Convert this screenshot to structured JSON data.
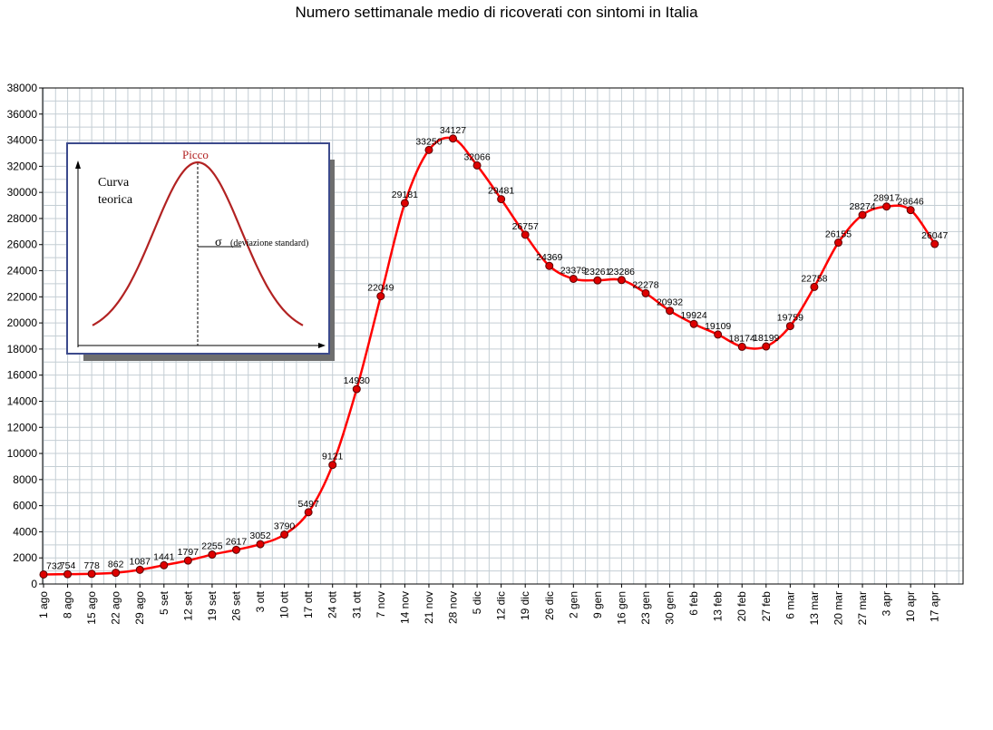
{
  "chart_data": {
    "type": "line",
    "title": "Numero settimanale medio di ricoverati con sintomi in Italia",
    "xlabel": "",
    "ylabel": "",
    "ylim": [
      0,
      38000
    ],
    "yticks": [
      0,
      2000,
      4000,
      6000,
      8000,
      10000,
      12000,
      14000,
      16000,
      18000,
      20000,
      22000,
      24000,
      26000,
      28000,
      30000,
      32000,
      34000,
      36000,
      38000
    ],
    "grid": true,
    "categories": [
      "1 ago",
      "8 ago",
      "15 ago",
      "22 ago",
      "29 ago",
      "5 set",
      "12 set",
      "19 set",
      "26 set",
      "3 ott",
      "10 ott",
      "17 ott",
      "24 ott",
      "31 ott",
      "7 nov",
      "14 nov",
      "21 nov",
      "28 nov",
      "5 dic",
      "12 dic",
      "19 dic",
      "26 dic",
      "2 gen",
      "9 gen",
      "16 gen",
      "23 gen",
      "30 gen",
      "6 feb",
      "13 feb",
      "20 feb",
      "27 feb",
      "6 mar",
      "13 mar",
      "20 mar",
      "27 mar",
      "3 apr",
      "10 apr",
      "17 apr"
    ],
    "series": [
      {
        "color": "#ff0000",
        "marker_color": "#dd0000",
        "values": [
          732,
          754,
          778,
          862,
          1087,
          1441,
          1797,
          2255,
          2617,
          3052,
          3790,
          5497,
          9121,
          14930,
          22049,
          29181,
          33250,
          34127,
          32066,
          29481,
          26757,
          24369,
          23379,
          23261,
          23286,
          22278,
          20932,
          19924,
          19109,
          18174,
          18199,
          19759,
          22758,
          26155,
          28274,
          28917,
          28646,
          26047
        ],
        "labels": [
          "732",
          "754",
          "778",
          "862",
          "1087",
          "1441",
          "1797",
          "2255",
          "2617",
          "3052",
          "3790",
          "5497",
          "9121",
          "14930",
          "22049",
          "29181",
          "33250",
          "34127",
          "32066",
          "29481",
          "26757",
          "24369",
          "23379",
          "23261",
          "23286",
          "22278",
          "20932",
          "19924",
          "19109",
          "18174",
          "18199",
          "19759",
          "22758",
          "26155",
          "28274",
          "28917",
          "28646",
          "26047"
        ]
      }
    ]
  },
  "inset": {
    "label_curve_line1": "Curva",
    "label_curve_line2": "teorica",
    "label_peak": "Picco",
    "label_sigma": "σ",
    "label_sigma_desc": "(deviazione standard)",
    "curve_color": "#b22222",
    "border_color": "#3c4a8c"
  }
}
